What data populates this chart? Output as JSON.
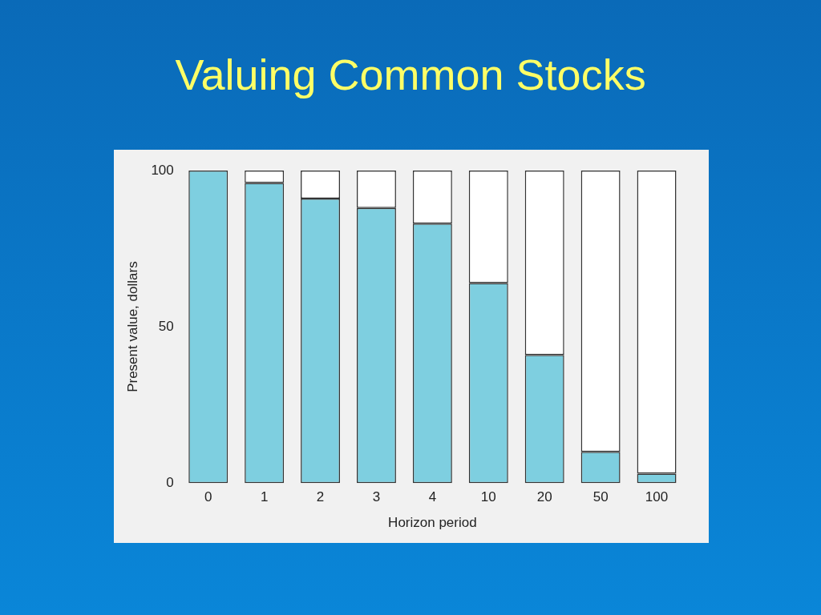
{
  "chart_data": {
    "type": "bar",
    "title": "Valuing Common Stocks",
    "xlabel": "Horizon period",
    "ylabel": "Present value, dollars",
    "categories": [
      "0",
      "1",
      "2",
      "3",
      "4",
      "10",
      "20",
      "50",
      "100"
    ],
    "series": [
      {
        "color": "#7ecfe0",
        "values": [
          100,
          96,
          91,
          88,
          83,
          64,
          41,
          10,
          3
        ]
      },
      {
        "color": "#ffffff",
        "values": [
          0,
          4,
          9,
          12,
          17,
          36,
          59,
          90,
          97
        ]
      }
    ],
    "stacked": true,
    "ylim": [
      0,
      100
    ],
    "yticks": [
      0,
      50,
      100
    ],
    "grid": false,
    "legend": false
  }
}
